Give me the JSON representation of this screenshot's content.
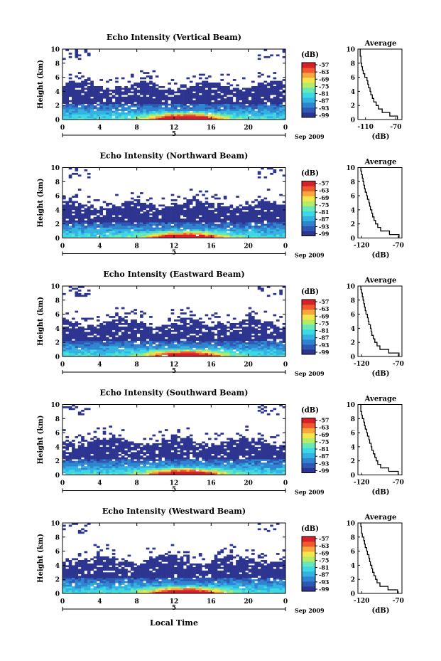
{
  "figure": {
    "x_axis_title": "Local Time",
    "day_label": "5",
    "month_label": "Sep 2009"
  },
  "colormap": [
    "#2d3590",
    "#2f58b4",
    "#2f84d0",
    "#33b2e2",
    "#3bd8e6",
    "#66e8b8",
    "#b4ec6a",
    "#f3e64a",
    "#f7a83c",
    "#ee5a2e",
    "#d8202a"
  ],
  "chart_data": [
    {
      "type": "heatmap",
      "title": "Echo Intensity (Vertical Beam)",
      "xlabel": "",
      "ylabel": "Height (km)",
      "xlim": [
        0,
        24
      ],
      "ylim": [
        0,
        10
      ],
      "xticks": [
        "0",
        "4",
        "8",
        "12",
        "16",
        "20",
        "0"
      ],
      "yticks": [
        "0",
        "2",
        "4",
        "6",
        "8",
        "10"
      ],
      "colorbar": {
        "label": "(dB)",
        "ticks": [
          "-57",
          "-63",
          "-69",
          "-75",
          "-81",
          "-87",
          "-93",
          "-99"
        ]
      },
      "profile": {
        "type": "line",
        "title": "Average",
        "xlabel": "(dB)",
        "xticks": [
          "-110",
          "-70"
        ],
        "xlim": [
          -120,
          -62
        ],
        "heights": [
          0,
          0.5,
          1,
          1.5,
          2,
          2.5,
          3,
          3.5,
          4,
          4.5,
          5,
          5.5,
          6,
          6.5,
          7,
          7.5,
          8,
          8.5,
          9,
          9.5,
          10
        ],
        "values": [
          -68,
          -78,
          -88,
          -93,
          -96,
          -99,
          -101,
          -103,
          -104,
          -106,
          -107,
          -108,
          -111,
          -113,
          -114,
          -115,
          -116,
          -116,
          -117,
          -117,
          -117
        ]
      }
    },
    {
      "type": "heatmap",
      "title": "Echo Intensity (Northward Beam)",
      "xlabel": "",
      "ylabel": "Height (km)",
      "xlim": [
        0,
        24
      ],
      "ylim": [
        0,
        10
      ],
      "xticks": [
        "0",
        "4",
        "8",
        "12",
        "16",
        "20",
        "0"
      ],
      "yticks": [
        "0",
        "2",
        "4",
        "6",
        "8",
        "10"
      ],
      "colorbar": {
        "label": "(dB)",
        "ticks": [
          "-57",
          "-63",
          "-69",
          "-75",
          "-81",
          "-87",
          "-93",
          "-99"
        ]
      },
      "profile": {
        "type": "line",
        "title": "Average",
        "xlabel": "(dB)",
        "xticks": [
          "-120",
          "-70"
        ],
        "xlim": [
          -125,
          -65
        ],
        "heights": [
          0,
          0.5,
          1,
          1.5,
          2,
          2.5,
          3,
          3.5,
          4,
          4.5,
          5,
          5.5,
          6,
          6.5,
          7,
          7.5,
          8,
          8.5,
          9,
          9.5,
          10
        ],
        "values": [
          -69,
          -82,
          -94,
          -98,
          -101,
          -103,
          -105,
          -106,
          -108,
          -109,
          -110,
          -112,
          -113,
          -115,
          -116,
          -117,
          -118,
          -119,
          -120,
          -121,
          -121
        ]
      }
    },
    {
      "type": "heatmap",
      "title": "Echo Intensity (Eastward Beam)",
      "xlabel": "",
      "ylabel": "Height (km)",
      "xlim": [
        0,
        24
      ],
      "ylim": [
        0,
        10
      ],
      "xticks": [
        "0",
        "4",
        "8",
        "12",
        "16",
        "20",
        "0"
      ],
      "yticks": [
        "0",
        "2",
        "4",
        "6",
        "8",
        "10"
      ],
      "colorbar": {
        "label": "(dB)",
        "ticks": [
          "-57",
          "-63",
          "-69",
          "-75",
          "-81",
          "-87",
          "-93",
          "-99"
        ]
      },
      "profile": {
        "type": "line",
        "title": "Average",
        "xlabel": "(dB)",
        "xticks": [
          "-120",
          "-70"
        ],
        "xlim": [
          -125,
          -65
        ],
        "heights": [
          0,
          0.5,
          1,
          1.5,
          2,
          2.5,
          3,
          3.5,
          4,
          4.5,
          5,
          5.5,
          6,
          6.5,
          7,
          7.5,
          8,
          8.5,
          9,
          9.5,
          10
        ],
        "values": [
          -69,
          -83,
          -95,
          -99,
          -102,
          -104,
          -106,
          -107,
          -108,
          -110,
          -111,
          -112,
          -114,
          -115,
          -116,
          -117,
          -118,
          -119,
          -120,
          -121,
          -121
        ]
      }
    },
    {
      "type": "heatmap",
      "title": "Echo Intensity (Southward Beam)",
      "xlabel": "",
      "ylabel": "Height (km)",
      "xlim": [
        0,
        24
      ],
      "ylim": [
        0,
        10
      ],
      "xticks": [
        "0",
        "4",
        "8",
        "12",
        "16",
        "20",
        "0"
      ],
      "yticks": [
        "0",
        "2",
        "4",
        "6",
        "8",
        "10"
      ],
      "colorbar": {
        "label": "(dB)",
        "ticks": [
          "-57",
          "-63",
          "-69",
          "-75",
          "-81",
          "-87",
          "-93",
          "-99"
        ]
      },
      "profile": {
        "type": "line",
        "title": "Average",
        "xlabel": "(dB)",
        "xticks": [
          "-120",
          "-70"
        ],
        "xlim": [
          -125,
          -65
        ],
        "heights": [
          0,
          0.5,
          1,
          1.5,
          2,
          2.5,
          3,
          3.5,
          4,
          4.5,
          5,
          5.5,
          6,
          6.5,
          7,
          7.5,
          8,
          8.5,
          9,
          9.5,
          10
        ],
        "values": [
          -70,
          -83,
          -94,
          -98,
          -100,
          -102,
          -104,
          -106,
          -107,
          -109,
          -110,
          -112,
          -113,
          -115,
          -116,
          -117,
          -119,
          -120,
          -121,
          -121,
          -122
        ]
      }
    },
    {
      "type": "heatmap",
      "title": "Echo Intensity (Westward Beam)",
      "xlabel": "",
      "ylabel": "Height (km)",
      "xlim": [
        0,
        24
      ],
      "ylim": [
        0,
        10
      ],
      "xticks": [
        "0",
        "4",
        "8",
        "12",
        "16",
        "20",
        "0"
      ],
      "yticks": [
        "0",
        "2",
        "4",
        "6",
        "8",
        "10"
      ],
      "colorbar": {
        "label": "(dB)",
        "ticks": [
          "-57",
          "-63",
          "-69",
          "-75",
          "-81",
          "-87",
          "-93",
          "-99"
        ]
      },
      "profile": {
        "type": "line",
        "title": "Average",
        "xlabel": "(dB)",
        "xticks": [
          "-120",
          "-70"
        ],
        "xlim": [
          -125,
          -65
        ],
        "heights": [
          0,
          0.5,
          1,
          1.5,
          2,
          2.5,
          3,
          3.5,
          4,
          4.5,
          5,
          5.5,
          6,
          6.5,
          7,
          7.5,
          8,
          8.5,
          9,
          9.5,
          10
        ],
        "values": [
          -71,
          -84,
          -95,
          -99,
          -101,
          -103,
          -105,
          -106,
          -108,
          -109,
          -110,
          -112,
          -113,
          -115,
          -116,
          -117,
          -119,
          -120,
          -120,
          -121,
          -121
        ]
      }
    }
  ]
}
